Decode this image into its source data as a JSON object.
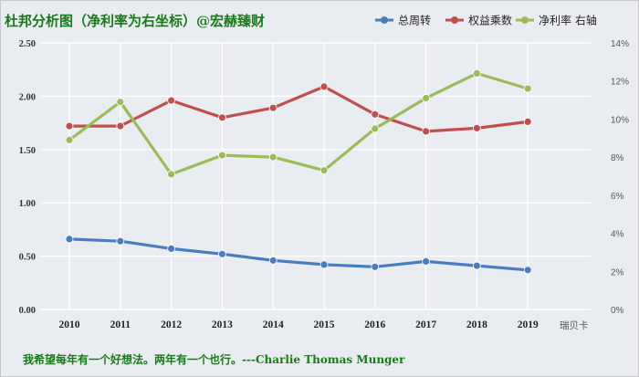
{
  "chart_data": {
    "type": "line",
    "title": "杜邦分析图（净利率为右坐标）@宏赫臻财",
    "categories": [
      "2010",
      "2011",
      "2012",
      "2013",
      "2014",
      "2015",
      "2016",
      "2017",
      "2018",
      "2019"
    ],
    "left_axis": {
      "ylim": [
        0,
        2.5
      ],
      "ticks": [
        "0.00",
        "0.50",
        "1.00",
        "1.50",
        "2.00",
        "2.50"
      ]
    },
    "right_axis": {
      "ylim": [
        0,
        0.14
      ],
      "ticks": [
        "0%",
        "2%",
        "4%",
        "6%",
        "8%",
        "10%",
        "12%",
        "14%"
      ]
    },
    "series": [
      {
        "name": "总周转",
        "axis": "left",
        "color": "#4a7cc0",
        "values": [
          0.66,
          0.64,
          0.57,
          0.52,
          0.46,
          0.42,
          0.4,
          0.45,
          0.41,
          0.37
        ]
      },
      {
        "name": "权益乘数",
        "axis": "left",
        "color": "#c0504d",
        "values": [
          1.72,
          1.72,
          1.96,
          1.8,
          1.89,
          2.09,
          1.83,
          1.67,
          1.7,
          1.76
        ]
      },
      {
        "name": "净利率 右轴",
        "axis": "right",
        "color": "#9bbb59",
        "values": [
          0.089,
          0.109,
          0.071,
          0.081,
          0.08,
          0.073,
          0.095,
          0.111,
          0.124,
          0.116
        ]
      }
    ],
    "grid": true,
    "legend": "top-right",
    "annotation": "瑞贝卡"
  },
  "quote": "我希望每年有一个好想法。两年有一个也行。---Charlie Thomas  Munger"
}
